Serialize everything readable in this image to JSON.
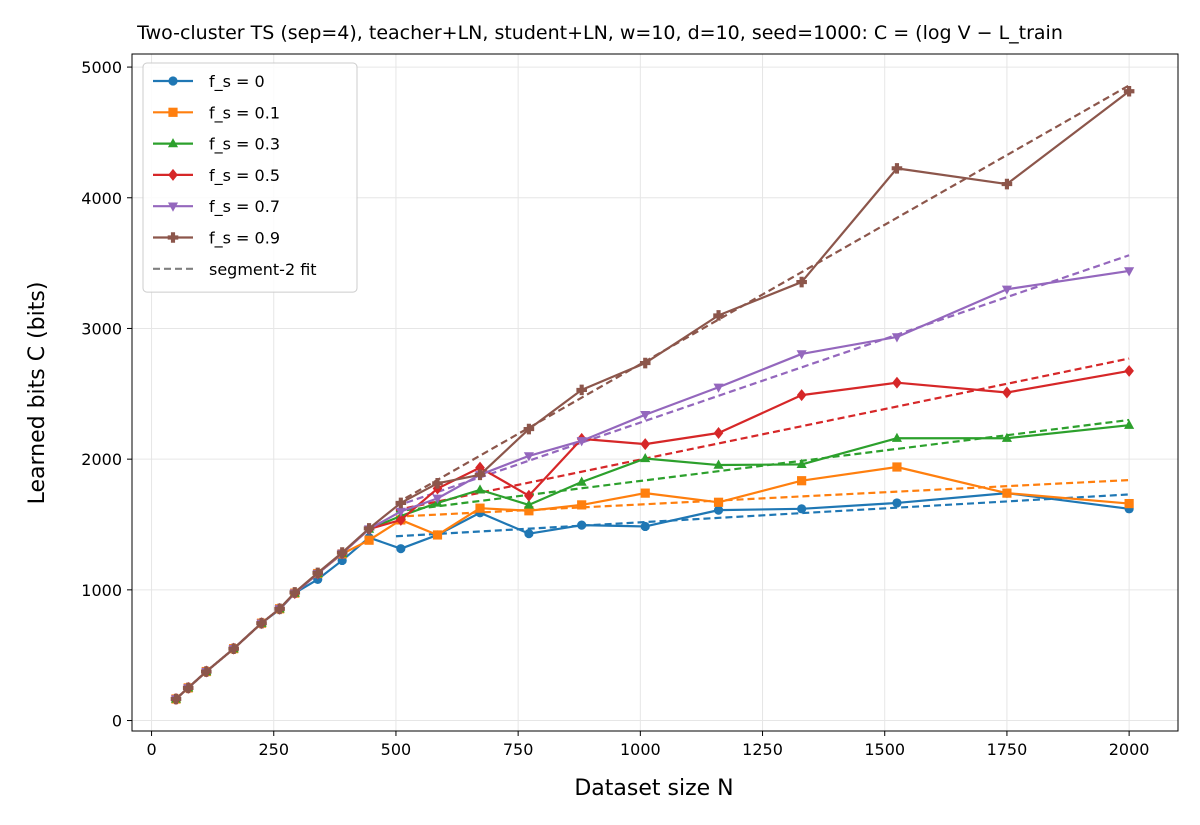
{
  "chart_data": {
    "type": "line",
    "title": "Two-cluster TS (sep=4), teacher+LN, student+LN, w=10, d=10, seed=1000: C = (log V − L_train",
    "xlabel": "Dataset size N",
    "ylabel": "Learned bits C (bits)",
    "xlim": [
      -40,
      2100
    ],
    "ylim": [
      -80,
      5100
    ],
    "xticks": [
      0,
      250,
      500,
      750,
      1000,
      1250,
      1500,
      1750,
      2000
    ],
    "yticks": [
      0,
      1000,
      2000,
      3000,
      4000,
      5000
    ],
    "grid": true,
    "legend_position": "upper-left",
    "series": [
      {
        "name": "f_s = 0",
        "color": "#1f77b4",
        "marker": "circle",
        "style": "solid",
        "x": [
          50,
          75,
          112,
          168,
          225,
          262,
          293,
          340,
          390,
          445,
          510,
          585,
          672,
          772,
          880,
          1010,
          1160,
          1330,
          1525,
          1750,
          2000
        ],
        "y": [
          165,
          250,
          375,
          550,
          745,
          850,
          975,
          1080,
          1225,
          1400,
          1315,
          1420,
          1590,
          1430,
          1495,
          1485,
          1610,
          1620,
          1665,
          1740,
          1620
        ]
      },
      {
        "name": "f_s = 0.1",
        "color": "#ff7f0e",
        "marker": "square",
        "style": "solid",
        "x": [
          50,
          75,
          112,
          168,
          225,
          262,
          293,
          340,
          390,
          445,
          510,
          585,
          672,
          772,
          880,
          1010,
          1160,
          1330,
          1525,
          1750,
          2000
        ],
        "y": [
          165,
          250,
          375,
          550,
          745,
          855,
          975,
          1125,
          1275,
          1380,
          1535,
          1420,
          1625,
          1605,
          1650,
          1740,
          1670,
          1835,
          1940,
          1740,
          1660
        ]
      },
      {
        "name": "f_s = 0.3",
        "color": "#2ca02c",
        "marker": "triangle-up",
        "style": "solid",
        "x": [
          50,
          75,
          112,
          168,
          225,
          262,
          293,
          340,
          390,
          445,
          510,
          585,
          672,
          772,
          880,
          1010,
          1160,
          1330,
          1525,
          1750,
          2000
        ],
        "y": [
          165,
          250,
          375,
          550,
          745,
          855,
          975,
          1125,
          1280,
          1465,
          1565,
          1665,
          1765,
          1650,
          1825,
          2005,
          1955,
          1960,
          2160,
          2160,
          2260
        ]
      },
      {
        "name": "f_s = 0.5",
        "color": "#d62728",
        "marker": "diamond",
        "style": "solid",
        "x": [
          50,
          75,
          112,
          168,
          225,
          262,
          293,
          340,
          390,
          445,
          510,
          585,
          672,
          772,
          880,
          1010,
          1160,
          1330,
          1525,
          1750,
          2000
        ],
        "y": [
          165,
          250,
          375,
          550,
          745,
          855,
          975,
          1125,
          1280,
          1465,
          1535,
          1775,
          1935,
          1720,
          2155,
          2115,
          2200,
          2490,
          2585,
          2510,
          2675
        ]
      },
      {
        "name": "f_s = 0.7",
        "color": "#9467bd",
        "marker": "triangle-down",
        "style": "solid",
        "x": [
          50,
          75,
          112,
          168,
          225,
          262,
          293,
          340,
          390,
          445,
          510,
          585,
          672,
          772,
          880,
          1010,
          1160,
          1330,
          1525,
          1750,
          2000
        ],
        "y": [
          165,
          250,
          375,
          550,
          745,
          855,
          975,
          1125,
          1280,
          1465,
          1600,
          1700,
          1880,
          2025,
          2140,
          2340,
          2550,
          2805,
          2935,
          3300,
          3440
        ]
      },
      {
        "name": "f_s = 0.9",
        "color": "#8c564b",
        "marker": "plus",
        "style": "solid",
        "x": [
          50,
          75,
          112,
          168,
          225,
          262,
          293,
          340,
          390,
          445,
          510,
          585,
          672,
          772,
          880,
          1010,
          1160,
          1330,
          1525,
          1750,
          2000
        ],
        "y": [
          165,
          250,
          375,
          550,
          745,
          855,
          980,
          1130,
          1285,
          1470,
          1665,
          1815,
          1880,
          2230,
          2530,
          2735,
          3100,
          3355,
          4225,
          4105,
          4815
        ]
      }
    ],
    "fits": [
      {
        "color": "#1f77b4",
        "x": [
          500,
          2000
        ],
        "y": [
          1410,
          1730
        ]
      },
      {
        "color": "#ff7f0e",
        "x": [
          500,
          2000
        ],
        "y": [
          1560,
          1840
        ]
      },
      {
        "color": "#2ca02c",
        "x": [
          500,
          2000
        ],
        "y": [
          1600,
          2300
        ]
      },
      {
        "color": "#d62728",
        "x": [
          500,
          2000
        ],
        "y": [
          1610,
          2770
        ]
      },
      {
        "color": "#9467bd",
        "x": [
          500,
          2000
        ],
        "y": [
          1640,
          3560
        ]
      },
      {
        "color": "#8c564b",
        "x": [
          500,
          2000
        ],
        "y": [
          1660,
          4860
        ]
      }
    ],
    "fit_legend": {
      "name": "segment-2 fit",
      "color": "#808080"
    }
  }
}
